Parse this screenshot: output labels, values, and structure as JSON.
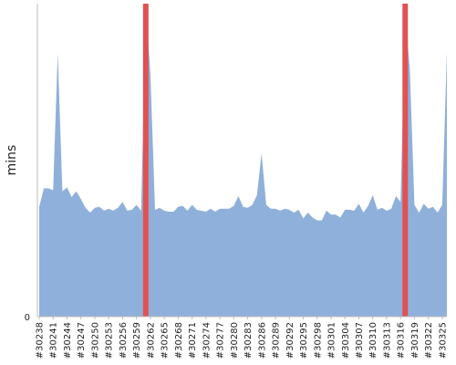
{
  "chart_data": {
    "type": "area",
    "ylabel": "mins",
    "ylim": [
      0,
      32.2
    ],
    "y_ticks": [
      {
        "value": 0,
        "label": "0"
      }
    ],
    "x_tick_labels": [
      "#30238",
      "#30241",
      "#30244",
      "#30247",
      "#30250",
      "#30253",
      "#30256",
      "#30259",
      "#30262",
      "#30265",
      "#30268",
      "#30271",
      "#30274",
      "#30277",
      "#30280",
      "#30283",
      "#30286",
      "#30289",
      "#30292",
      "#30295",
      "#30298",
      "#30301",
      "#30304",
      "#30307",
      "#30310",
      "#30313",
      "#30316",
      "#30319",
      "#30322",
      "#30325"
    ],
    "x_tick_label_values": [
      30238,
      30241,
      30244,
      30247,
      30250,
      30253,
      30256,
      30259,
      30262,
      30265,
      30268,
      30271,
      30274,
      30277,
      30280,
      30283,
      30286,
      30289,
      30292,
      30295,
      30298,
      30301,
      30304,
      30307,
      30310,
      30313,
      30316,
      30319,
      30322,
      30325
    ],
    "x": [
      30238,
      30239,
      30240,
      30241,
      30242,
      30243,
      30244,
      30245,
      30246,
      30247,
      30248,
      30249,
      30250,
      30251,
      30252,
      30253,
      30254,
      30255,
      30256,
      30257,
      30258,
      30259,
      30260,
      30261,
      30262,
      30263,
      30264,
      30265,
      30266,
      30267,
      30268,
      30269,
      30270,
      30271,
      30272,
      30273,
      30274,
      30275,
      30276,
      30277,
      30278,
      30279,
      30280,
      30281,
      30282,
      30283,
      30284,
      30285,
      30286,
      30287,
      30288,
      30289,
      30290,
      30291,
      30292,
      30293,
      30294,
      30295,
      30296,
      30297,
      30298,
      30299,
      30300,
      30301,
      30302,
      30303,
      30304,
      30305,
      30306,
      30307,
      30308,
      30309,
      30310,
      30311,
      30312,
      30313,
      30314,
      30315,
      30316,
      30317,
      30318,
      30319,
      30320,
      30321,
      30322,
      30323,
      30324,
      30325,
      30326
    ],
    "series": [
      {
        "color": "#8fb0da",
        "values": [
          11.3,
          13.2,
          13.2,
          13,
          27.1,
          12.9,
          13.3,
          12.3,
          12.9,
          12.1,
          11.2,
          10.7,
          11.2,
          11.3,
          10.9,
          11.1,
          10.9,
          11.2,
          11.8,
          10.9,
          11,
          11.5,
          10.9,
          32.2,
          25,
          11,
          11.2,
          10.9,
          10.8,
          10.8,
          11.3,
          11.4,
          10.9,
          11.5,
          11,
          10.9,
          10.8,
          11.1,
          10.8,
          11.1,
          11.1,
          11.1,
          11.4,
          12.4,
          11.3,
          11.2,
          11.5,
          12.5,
          16.8,
          11.5,
          11.1,
          11.1,
          10.9,
          11.1,
          11,
          10.7,
          11,
          10.1,
          10.7,
          10.2,
          9.9,
          9.9,
          10.9,
          10.5,
          10.5,
          10.2,
          11,
          11,
          10.9,
          11.6,
          10.7,
          11.4,
          12.5,
          11,
          11.2,
          10.9,
          11.1,
          12.4,
          11.8,
          31,
          25.5,
          11.5,
          10.7,
          11.6,
          11.1,
          11.3,
          10.7,
          11.5,
          27.3
        ]
      }
    ],
    "highlights": [
      {
        "x": 30261,
        "color": "#e05252"
      },
      {
        "x": 30317,
        "color": "#e05252"
      }
    ],
    "grid": false,
    "legend": "none"
  }
}
